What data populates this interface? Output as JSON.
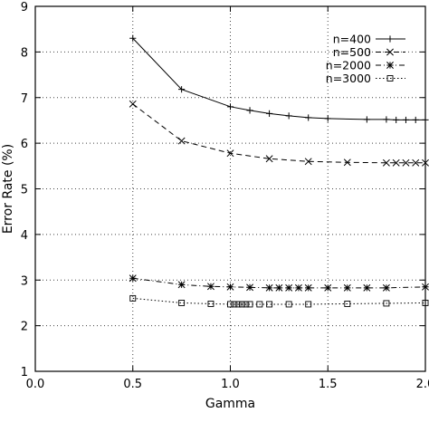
{
  "chart_data": {
    "type": "line",
    "title": "",
    "xlabel": "Gamma",
    "ylabel": "Error Rate (%)",
    "xlim": [
      0.0,
      2.0
    ],
    "ylim": [
      1,
      9
    ],
    "xticks": [
      0.0,
      0.5,
      1.0,
      1.5,
      2.0
    ],
    "xtick_labels": [
      "0.0",
      "0.5",
      "1.0",
      "1.5",
      "2.0"
    ],
    "yticks": [
      1,
      2,
      3,
      4,
      5,
      6,
      7,
      8,
      9
    ],
    "ytick_labels": [
      "1",
      "2",
      "3",
      "4",
      "5",
      "6",
      "7",
      "8",
      "9"
    ],
    "grid": true,
    "legend_position": "top-right",
    "series": [
      {
        "name": "n=400",
        "marker": "plus",
        "dash": "solid",
        "x": [
          0.5,
          0.75,
          1.0,
          1.1,
          1.2,
          1.3,
          1.4,
          1.5,
          1.7,
          1.8,
          1.85,
          1.9,
          1.95,
          2.0
        ],
        "y": [
          8.3,
          7.18,
          6.8,
          6.72,
          6.65,
          6.6,
          6.56,
          6.54,
          6.52,
          6.52,
          6.51,
          6.51,
          6.51,
          6.51
        ]
      },
      {
        "name": "n=500",
        "marker": "x",
        "dash": "dashed",
        "x": [
          0.5,
          0.75,
          1.0,
          1.2,
          1.4,
          1.6,
          1.8,
          1.85,
          1.9,
          1.95,
          2.0
        ],
        "y": [
          6.86,
          6.05,
          5.78,
          5.66,
          5.6,
          5.58,
          5.57,
          5.57,
          5.57,
          5.57,
          5.57
        ]
      },
      {
        "name": "n=2000",
        "marker": "asterisk",
        "dash": "dash-dot",
        "x": [
          0.5,
          0.75,
          0.9,
          1.0,
          1.1,
          1.2,
          1.25,
          1.3,
          1.35,
          1.4,
          1.5,
          1.6,
          1.7,
          1.8,
          2.0
        ],
        "y": [
          3.04,
          2.9,
          2.86,
          2.85,
          2.84,
          2.83,
          2.83,
          2.83,
          2.83,
          2.83,
          2.83,
          2.83,
          2.83,
          2.83,
          2.85
        ]
      },
      {
        "name": "n=3000",
        "marker": "square",
        "dash": "dotted",
        "x": [
          0.5,
          0.75,
          0.9,
          1.0,
          1.02,
          1.04,
          1.06,
          1.08,
          1.1,
          1.15,
          1.2,
          1.3,
          1.4,
          1.6,
          1.8,
          2.0
        ],
        "y": [
          2.6,
          2.5,
          2.48,
          2.47,
          2.47,
          2.47,
          2.47,
          2.47,
          2.47,
          2.47,
          2.47,
          2.47,
          2.47,
          2.48,
          2.49,
          2.5
        ]
      }
    ]
  }
}
